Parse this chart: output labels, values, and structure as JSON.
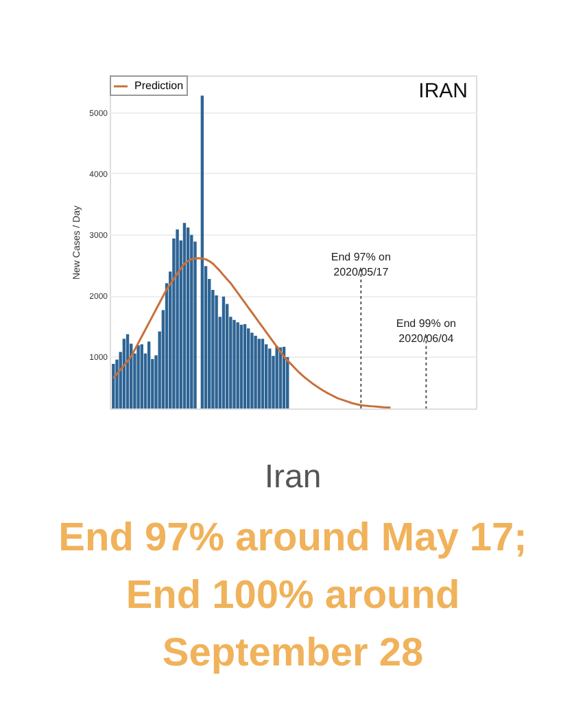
{
  "chart_data": {
    "type": "bar",
    "title": "Iran",
    "subtitle": "End 97% around May 17; End 100% around September 28",
    "ylabel": "New Cases / Day",
    "annotations": [
      "IRAN",
      "End 97% on 2020/05/17",
      "End 99% on 2020/06/04"
    ],
    "categories": [
      null,
      null,
      null,
      null,
      null,
      null,
      null,
      null,
      null,
      null,
      null,
      null,
      null,
      null,
      null,
      null,
      null,
      null,
      null,
      null,
      null,
      null,
      null,
      null,
      null,
      null,
      null,
      null,
      null,
      null,
      null,
      null,
      null,
      null,
      null,
      null,
      null,
      null,
      null,
      null,
      null,
      null,
      null,
      null,
      null,
      null,
      null,
      null,
      null,
      null,
      null,
      null,
      null,
      null,
      null,
      null,
      null,
      null,
      null,
      null,
      null,
      null,
      null,
      null,
      null,
      null,
      null,
      null,
      null,
      null,
      null,
      null,
      null,
      null,
      null,
      null,
      null,
      null,
      null,
      null,
      null,
      null,
      null,
      null,
      null,
      null,
      null,
      null,
      null,
      null,
      null,
      null,
      null,
      null,
      null,
      null,
      null,
      null,
      null,
      null,
      null,
      null
    ],
    "series": [
      {
        "color": "#2e6494",
        "values": [
          880,
          950,
          1075,
          1290,
          1365,
          1210,
          1050,
          1185,
          1200,
          1050,
          1245,
          960,
          1020,
          1410,
          1760,
          2200,
          2390,
          2930,
          3080,
          2900,
          3185,
          3110,
          2990,
          2880,
          null,
          5270,
          2480,
          2270,
          2090,
          2000,
          1650,
          1980,
          1860,
          1650,
          1600,
          1560,
          1520,
          1530,
          1460,
          1390,
          1340,
          1290,
          1290,
          1200,
          1130,
          1010,
          1170,
          1150,
          1160,
          990,
          null,
          null,
          null,
          null,
          null,
          null,
          null,
          null,
          null,
          null,
          null,
          null,
          null,
          null,
          null,
          null,
          null,
          null,
          null,
          null,
          null,
          null,
          null,
          null,
          null,
          null,
          null,
          null,
          null,
          null,
          null,
          null,
          null,
          null,
          null,
          null,
          null,
          null,
          null,
          null,
          null,
          null,
          null,
          null,
          null,
          null,
          null,
          null,
          null,
          null,
          null,
          null
        ]
      },
      {
        "type": "line",
        "name": "Prediction",
        "color": "#c8703a",
        "values": [
          650,
          715,
          785,
          855,
          925,
          1000,
          1110,
          1220,
          1330,
          1440,
          1550,
          1660,
          1770,
          1880,
          1990,
          2100,
          2185,
          2270,
          2355,
          2440,
          2520,
          2560,
          2590,
          2605,
          2610,
          2605,
          2590,
          2560,
          2520,
          2460,
          2400,
          2330,
          2265,
          2200,
          2120,
          2040,
          1960,
          1880,
          1800,
          1720,
          1640,
          1560,
          1480,
          1400,
          1320,
          1240,
          1160,
          1080,
          1000,
          935,
          875,
          815,
          755,
          700,
          650,
          605,
          560,
          520,
          480,
          445,
          410,
          380,
          350,
          320,
          300,
          280,
          260,
          240,
          225,
          212,
          200,
          195,
          190,
          185,
          180,
          175,
          170,
          167,
          165,
          null,
          null,
          null,
          null,
          null,
          null,
          null,
          null,
          null,
          null,
          null,
          null,
          null,
          null,
          null,
          null,
          null,
          null,
          null,
          null,
          null,
          null,
          null
        ]
      }
    ],
    "ylim": [
      150,
      5600
    ],
    "yticks": [
      1000,
      2000,
      3000,
      4000,
      5000
    ],
    "grid": "y",
    "legend": "top left",
    "tick_labels": "y"
  }
}
